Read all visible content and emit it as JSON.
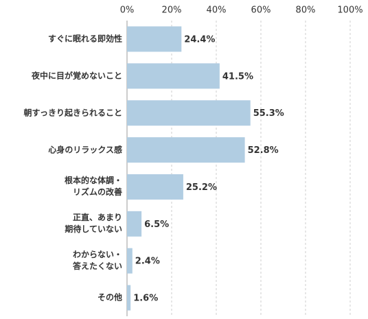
{
  "chart_data": {
    "type": "bar",
    "orientation": "horizontal",
    "categories": [
      "すぐに眠れる即効性",
      "夜中に目が覚めないこと",
      "朝すっきり起きられること",
      "心身のリラックス感",
      "根本的な体調・\nリズムの改善",
      "正直、あまり\n期待していない",
      "わからない・\n答えたくない",
      "その他"
    ],
    "values": [
      24.4,
      41.5,
      55.3,
      52.8,
      25.2,
      6.5,
      2.4,
      1.6
    ],
    "value_labels": [
      "24.4%",
      "41.5%",
      "55.3%",
      "52.8%",
      "25.2%",
      "6.5%",
      "2.4%",
      "1.6%"
    ],
    "color": "#b1cde2",
    "xlim": [
      0,
      100
    ],
    "xticks": [
      {
        "value": 0,
        "label": "0%"
      },
      {
        "value": 20,
        "label": "20%"
      },
      {
        "value": 40,
        "label": "40%"
      },
      {
        "value": 60,
        "label": "60%"
      },
      {
        "value": 80,
        "label": "80%"
      },
      {
        "value": 100,
        "label": "100%"
      }
    ],
    "grid": true
  }
}
